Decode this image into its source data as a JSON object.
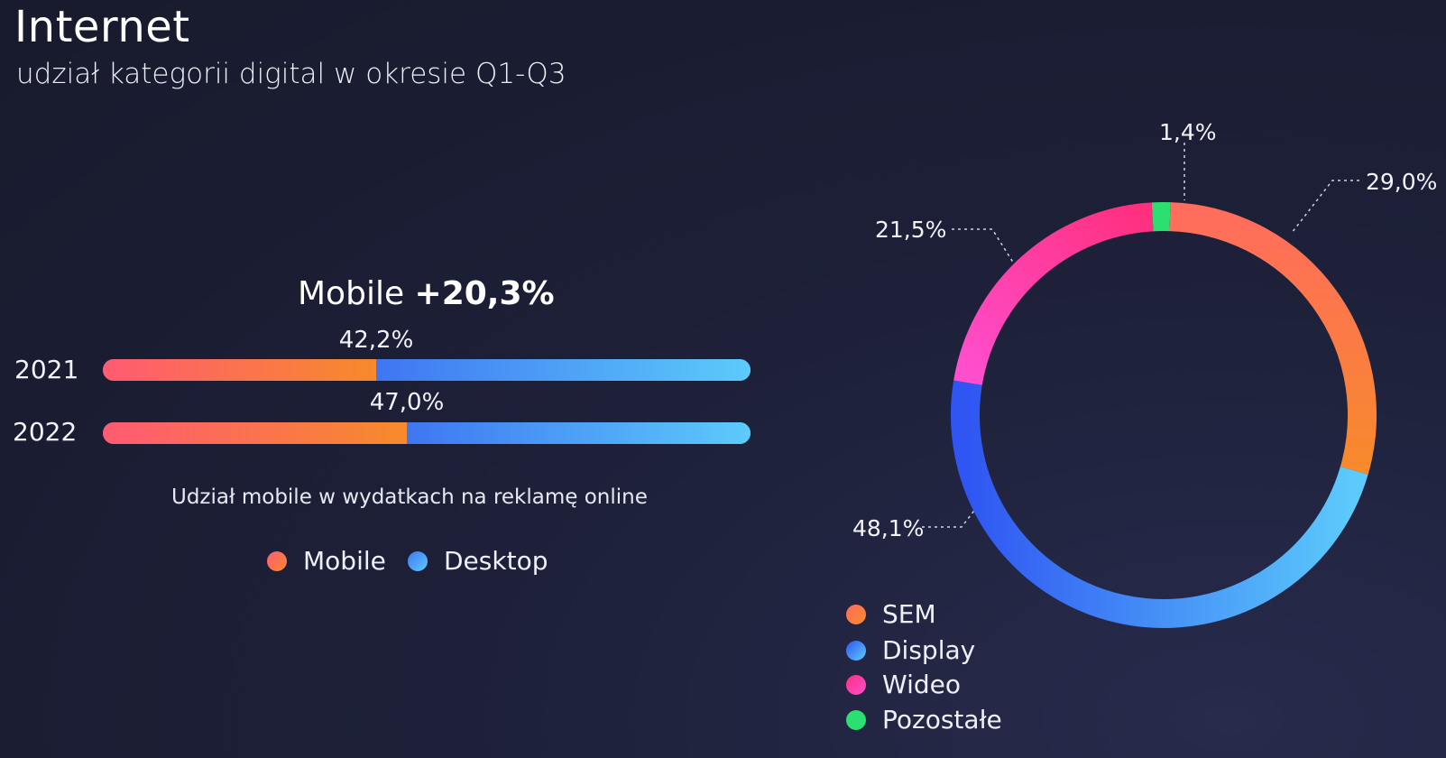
{
  "header": {
    "title": "Internet",
    "subtitle": "udział kategorii digital w okresie Q1-Q3"
  },
  "bar_panel": {
    "headline_prefix": "Mobile ",
    "headline_delta": "+20,3%",
    "caption": "Udział mobile w wydatkach na reklamę online",
    "legend": [
      {
        "label": "Mobile",
        "color": "#fb6e55"
      },
      {
        "label": "Desktop",
        "color": "#3f76f2"
      }
    ]
  },
  "donut_panel": {
    "legend": [
      {
        "label": "SEM",
        "color": "#ff7a4f"
      },
      {
        "label": "Display",
        "color": "#3f76f2"
      },
      {
        "label": "Wideo",
        "color": "#ff4fb0"
      },
      {
        "label": "Pozostałe",
        "color": "#2be070"
      }
    ]
  },
  "chart_data": [
    {
      "type": "bar",
      "orientation": "horizontal-stacked",
      "title": "Mobile +20,3%",
      "caption": "Udział mobile w wydatkach na reklamę online",
      "categories": [
        "2021",
        "2022"
      ],
      "series": [
        {
          "name": "Mobile",
          "values": [
            42.2,
            47.0
          ],
          "labels": [
            "42,2%",
            "47,0%"
          ],
          "color": "#fb6e55"
        },
        {
          "name": "Desktop",
          "values": [
            57.8,
            53.0
          ],
          "color": "#3f76f2"
        }
      ],
      "xlim": [
        0,
        100
      ],
      "legend_position": "bottom"
    },
    {
      "type": "pie",
      "style": "donut",
      "title": "",
      "slices": [
        {
          "name": "Pozostałe",
          "value": 1.4,
          "label": "1,4%",
          "color": "#2be070"
        },
        {
          "name": "SEM",
          "value": 29.0,
          "label": "29,0%",
          "color": "#ff7a4f"
        },
        {
          "name": "Display",
          "value": 48.1,
          "label": "48,1%",
          "color": "#3f76f2"
        },
        {
          "name": "Wideo",
          "value": 21.5,
          "label": "21,5%",
          "color": "#ff4fb0"
        }
      ],
      "legend_position": "bottom-left"
    }
  ]
}
